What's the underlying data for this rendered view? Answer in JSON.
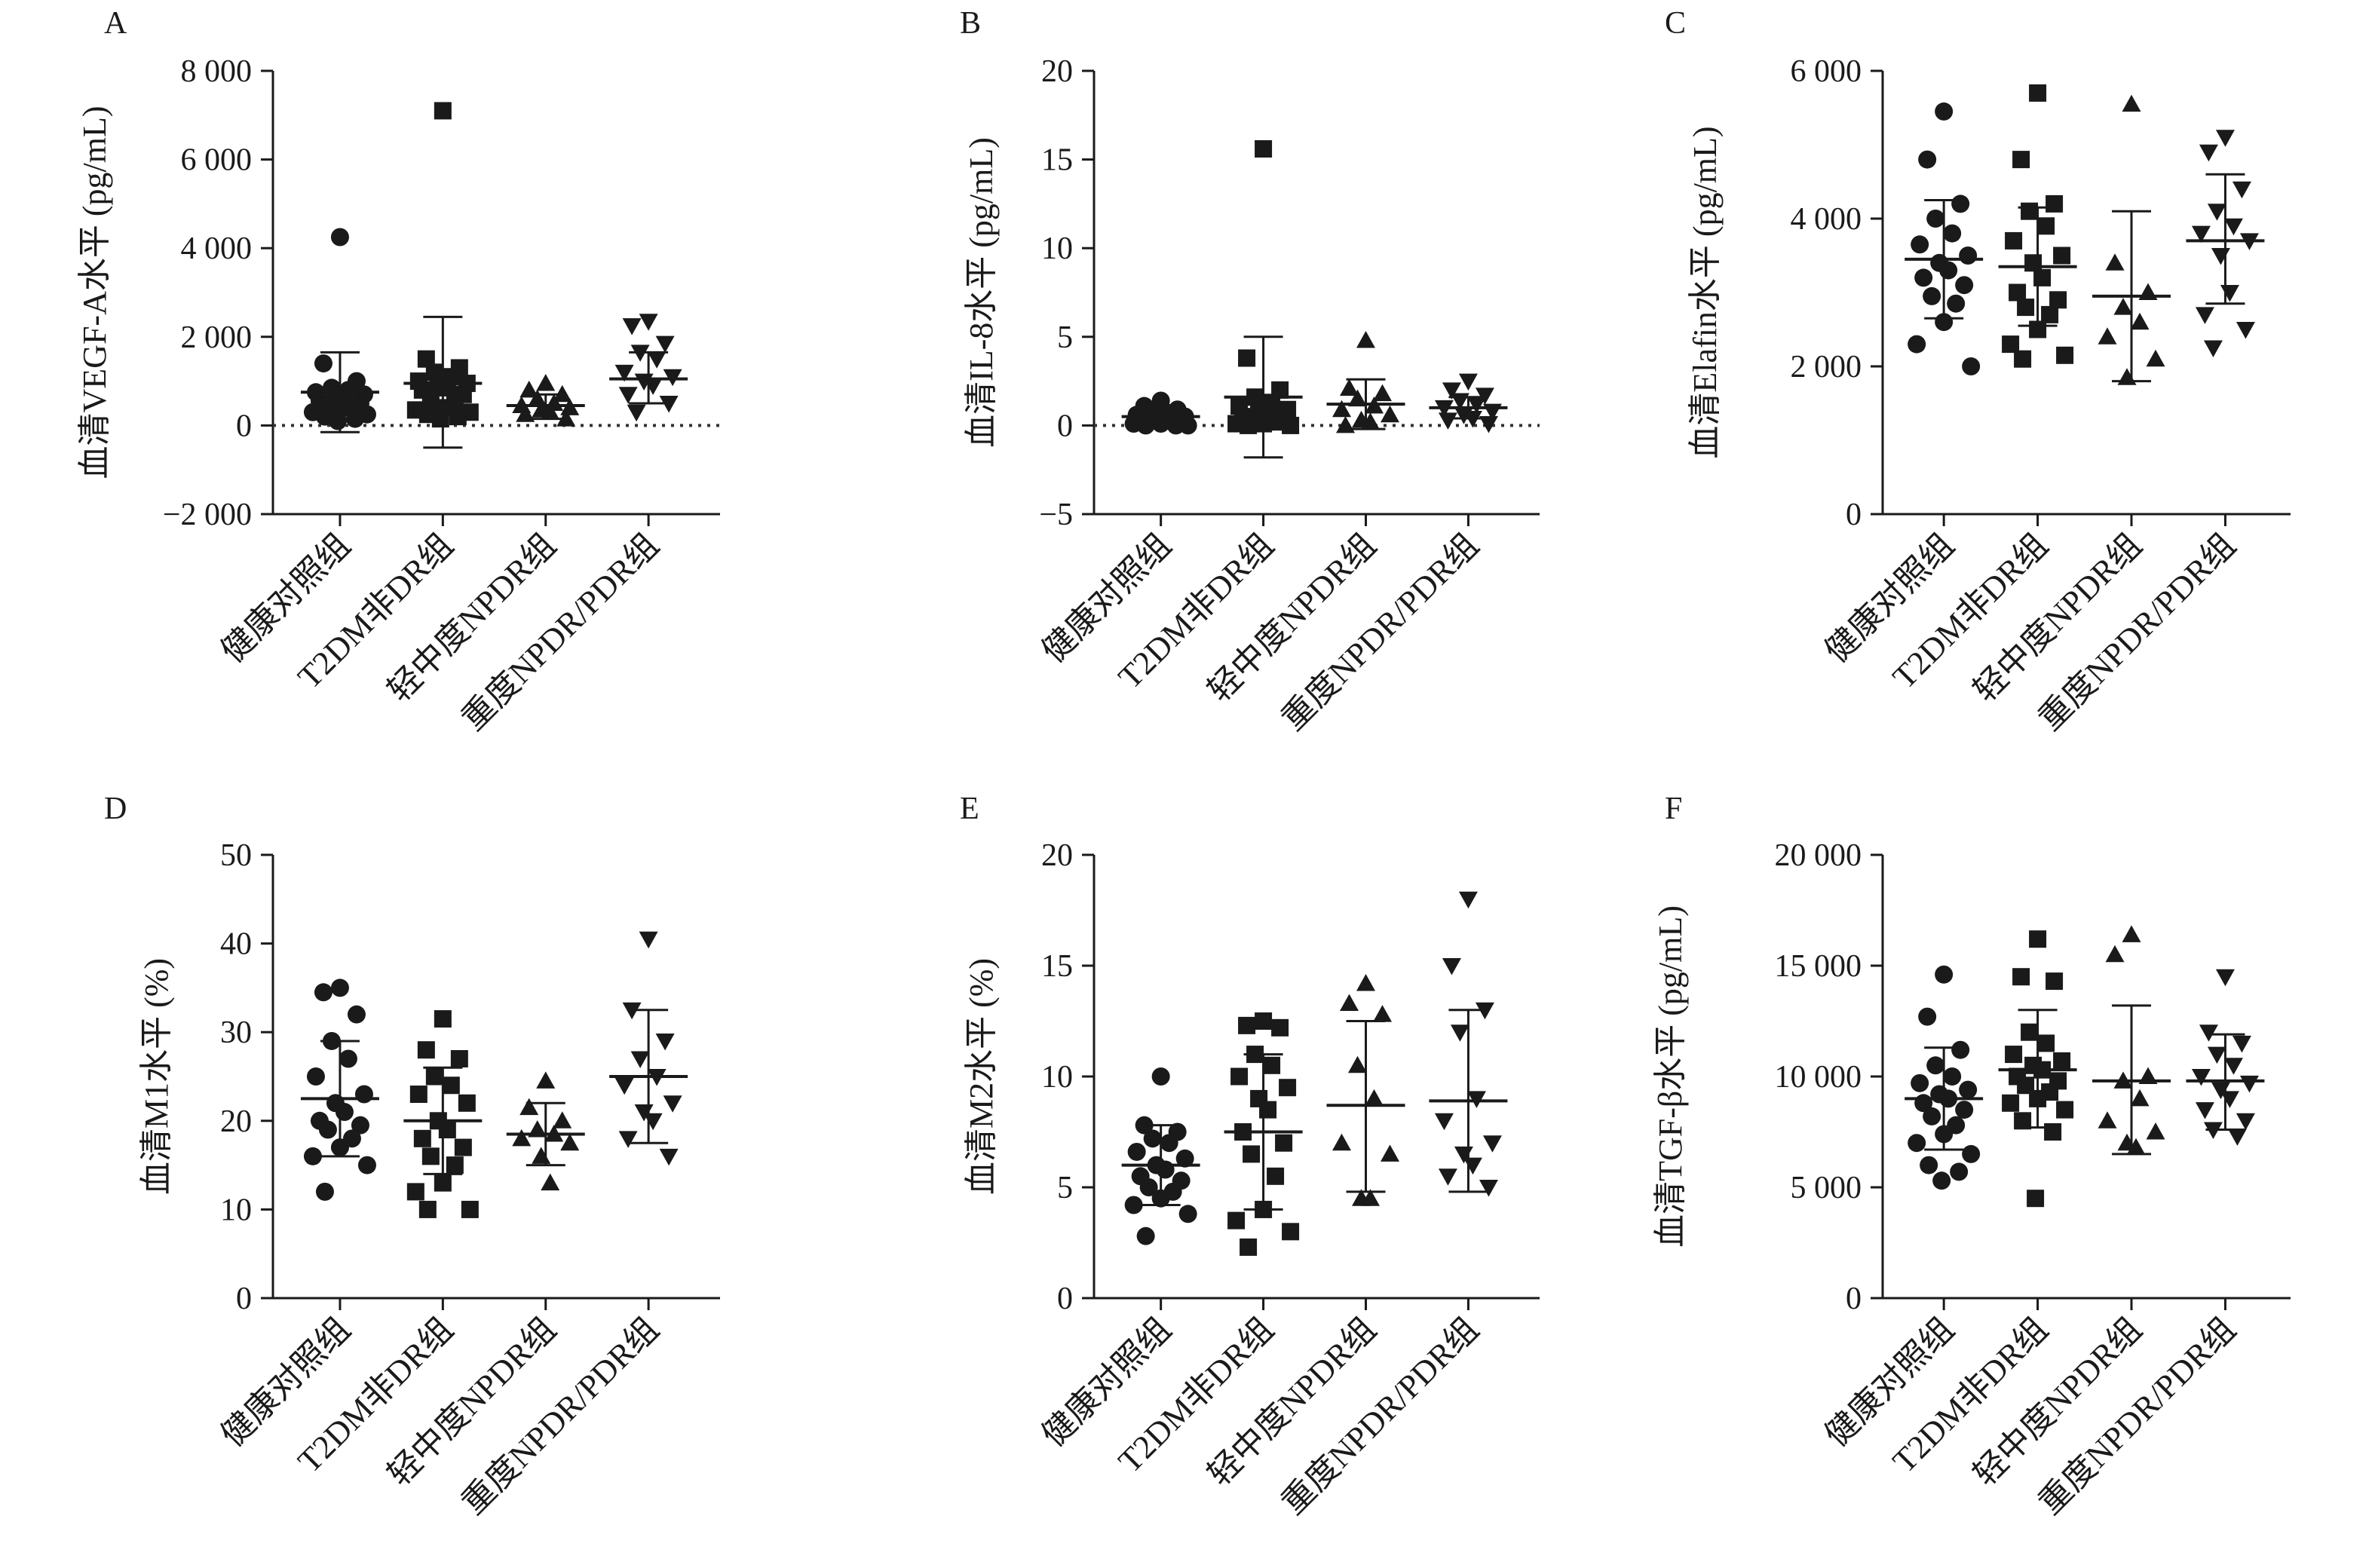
{
  "figure": {
    "panels": [
      "A",
      "B",
      "C",
      "D",
      "E",
      "F"
    ]
  },
  "chart_data": [
    {
      "panel": "A",
      "type": "scatter",
      "ylabel": "血清VEGF-A水平 (pg/mL)",
      "categories": [
        "健康对照组",
        "T2DM非DR组",
        "轻中度NPDR组",
        "重度NPDR/PDR组"
      ],
      "ylim": [
        -2000,
        8000
      ],
      "yticks": [
        -2000,
        0,
        2000,
        4000,
        6000,
        8000
      ],
      "ytick_labels": [
        "−2 000",
        "0",
        "2 000",
        "4 000",
        "6 000",
        "8 000"
      ],
      "zero_line": true,
      "markers": [
        "circle",
        "square",
        "triangle-up",
        "triangle-down"
      ],
      "series": [
        {
          "category": "健康对照组",
          "points": [
            4250,
            1400,
            1000,
            850,
            800,
            750,
            700,
            650,
            600,
            550,
            500,
            450,
            400,
            350,
            300,
            250,
            200,
            150,
            100
          ],
          "mean": 750,
          "sd_low": -150,
          "sd_high": 1650
        },
        {
          "category": "T2DM非DR组",
          "points": [
            7100,
            1500,
            1300,
            1200,
            1100,
            1000,
            950,
            900,
            850,
            800,
            700,
            600,
            500,
            400,
            350,
            300,
            250,
            200,
            150
          ],
          "mean": 950,
          "sd_low": -500,
          "sd_high": 2450
        },
        {
          "category": "轻中度NPDR组",
          "points": [
            950,
            800,
            700,
            600,
            500,
            450,
            400,
            350,
            300,
            250,
            150
          ],
          "mean": 450,
          "sd_low": 150,
          "sd_high": 700
        },
        {
          "category": "重度NPDR/PDR组",
          "points": [
            2350,
            2250,
            1850,
            1650,
            1500,
            1200,
            1100,
            1000,
            900,
            700,
            500,
            300
          ],
          "mean": 1050,
          "sd_low": 500,
          "sd_high": 1650
        }
      ]
    },
    {
      "panel": "B",
      "type": "scatter",
      "ylabel": "血清IL-8水平 (pg/mL)",
      "categories": [
        "健康对照组",
        "T2DM非DR组",
        "轻中度NPDR组",
        "重度NPDR/PDR组"
      ],
      "ylim": [
        -5,
        20
      ],
      "yticks": [
        -5,
        0,
        5,
        10,
        15,
        20
      ],
      "ytick_labels": [
        "−5",
        "0",
        "5",
        "10",
        "15",
        "20"
      ],
      "zero_line": true,
      "markers": [
        "circle",
        "square",
        "triangle-up",
        "triangle-down"
      ],
      "series": [
        {
          "category": "健康对照组",
          "points": [
            1.4,
            1.1,
            0.9,
            0.8,
            0.7,
            0.6,
            0.5,
            0.4,
            0.4,
            0.3,
            0.3,
            0.2,
            0.2,
            0.1,
            0.1,
            0.0,
            0.0,
            0.0
          ],
          "mean": 0.5,
          "sd_low": 0.1,
          "sd_high": 0.9
        },
        {
          "category": "T2DM非DR组",
          "points": [
            15.6,
            3.8,
            2.0,
            1.6,
            1.3,
            1.1,
            0.9,
            0.8,
            0.6,
            0.5,
            0.4,
            0.3,
            0.2,
            0.1,
            0.1,
            0.0,
            0.0
          ],
          "mean": 1.6,
          "sd_low": -1.8,
          "sd_high": 5.0
        },
        {
          "category": "轻中度NPDR组",
          "points": [
            4.8,
            2.1,
            1.8,
            1.5,
            1.1,
            0.9,
            0.6,
            0.3,
            0.2,
            0.0
          ],
          "mean": 1.2,
          "sd_low": -0.2,
          "sd_high": 2.6
        },
        {
          "category": "重度NPDR/PDR组",
          "points": [
            2.5,
            2.0,
            1.7,
            1.4,
            1.2,
            1.0,
            0.8,
            0.6,
            0.4,
            0.3,
            0.1
          ],
          "mean": 1.0,
          "sd_low": 0.4,
          "sd_high": 1.6
        }
      ]
    },
    {
      "panel": "C",
      "type": "scatter",
      "ylabel": "血清Elafin水平 (pg/mL)",
      "categories": [
        "健康对照组",
        "T2DM非DR组",
        "轻中度NPDR组",
        "重度NPDR/PDR组"
      ],
      "ylim": [
        0,
        6000
      ],
      "yticks": [
        0,
        2000,
        4000,
        6000
      ],
      "ytick_labels": [
        "0",
        "2 000",
        "4 000",
        "6 000"
      ],
      "zero_line": false,
      "markers": [
        "circle",
        "square",
        "triangle-up",
        "triangle-down"
      ],
      "series": [
        {
          "category": "健康对照组",
          "points": [
            5450,
            4800,
            4200,
            4000,
            3800,
            3650,
            3500,
            3400,
            3300,
            3200,
            3100,
            2950,
            2850,
            2600,
            2300,
            2000
          ],
          "mean": 3450,
          "sd_low": 2650,
          "sd_high": 4250
        },
        {
          "category": "T2DM非DR组",
          "points": [
            5700,
            4800,
            4200,
            4100,
            3900,
            3700,
            3500,
            3400,
            3200,
            3000,
            2900,
            2800,
            2700,
            2500,
            2300,
            2150,
            2100
          ],
          "mean": 3350,
          "sd_low": 2550,
          "sd_high": 4150
        },
        {
          "category": "轻中度NPDR组",
          "points": [
            5550,
            3400,
            3000,
            2800,
            2600,
            2400,
            2100,
            1850
          ],
          "mean": 2950,
          "sd_low": 1800,
          "sd_high": 4100
        },
        {
          "category": "重度NPDR/PDR组",
          "points": [
            5100,
            4900,
            4400,
            4100,
            3900,
            3800,
            3700,
            3500,
            3000,
            2700,
            2500,
            2250
          ],
          "mean": 3700,
          "sd_low": 2850,
          "sd_high": 4600
        }
      ]
    },
    {
      "panel": "D",
      "type": "scatter",
      "ylabel": "血清M1水平 (%)",
      "categories": [
        "健康对照组",
        "T2DM非DR组",
        "轻中度NPDR组",
        "重度NPDR/PDR组"
      ],
      "ylim": [
        0,
        50
      ],
      "yticks": [
        0,
        10,
        20,
        30,
        40,
        50
      ],
      "ytick_labels": [
        "0",
        "10",
        "20",
        "30",
        "40",
        "50"
      ],
      "zero_line": false,
      "markers": [
        "circle",
        "square",
        "triangle-up",
        "triangle-down"
      ],
      "series": [
        {
          "category": "健康对照组",
          "points": [
            35,
            34.5,
            32,
            29,
            27,
            25,
            23,
            22,
            21,
            20,
            19.5,
            19,
            18,
            17,
            16,
            15,
            12
          ],
          "mean": 22.5,
          "sd_low": 16,
          "sd_high": 29
        },
        {
          "category": "T2DM非DR组",
          "points": [
            31.5,
            28,
            27,
            25,
            24,
            23,
            22,
            20,
            19,
            18,
            17,
            16,
            15,
            13,
            12,
            10,
            10
          ],
          "mean": 20,
          "sd_low": 14,
          "sd_high": 26
        },
        {
          "category": "轻中度NPDR组",
          "points": [
            24.5,
            21.5,
            20,
            19,
            18.5,
            18,
            17.5,
            16,
            13
          ],
          "mean": 18.5,
          "sd_low": 15,
          "sd_high": 22
        },
        {
          "category": "重度NPDR/PDR组",
          "points": [
            40.5,
            32.5,
            29,
            27,
            25,
            24,
            22,
            21,
            20,
            18,
            16
          ],
          "mean": 25,
          "sd_low": 17.5,
          "sd_high": 32.5
        }
      ]
    },
    {
      "panel": "E",
      "type": "scatter",
      "ylabel": "血清M2水平 (%)",
      "categories": [
        "健康对照组",
        "T2DM非DR组",
        "轻中度NPDR组",
        "重度NPDR/PDR组"
      ],
      "ylim": [
        0,
        20
      ],
      "yticks": [
        0,
        5,
        10,
        15,
        20
      ],
      "ytick_labels": [
        "0",
        "5",
        "10",
        "15",
        "20"
      ],
      "zero_line": false,
      "markers": [
        "circle",
        "square",
        "triangle-up",
        "triangle-down"
      ],
      "series": [
        {
          "category": "健康对照组",
          "points": [
            10,
            7.8,
            7.5,
            7.2,
            7,
            6.6,
            6.3,
            6,
            5.8,
            5.5,
            5.3,
            5,
            4.8,
            4.5,
            4.2,
            3.8,
            2.8
          ],
          "mean": 6,
          "sd_low": 4.2,
          "sd_high": 7.8
        },
        {
          "category": "T2DM非DR组",
          "points": [
            12.5,
            12.3,
            12.2,
            11,
            10.5,
            10,
            9.5,
            9,
            8.5,
            7.5,
            7,
            6.5,
            5.5,
            4,
            3.5,
            3,
            2.3
          ],
          "mean": 7.5,
          "sd_low": 4,
          "sd_high": 11
        },
        {
          "category": "轻中度NPDR组",
          "points": [
            14.2,
            13.3,
            12.8,
            10.5,
            9,
            7,
            6.5,
            4.5,
            4.5
          ],
          "mean": 8.7,
          "sd_low": 4.8,
          "sd_high": 12.5
        },
        {
          "category": "重度NPDR/PDR组",
          "points": [
            18,
            15,
            13,
            12,
            9,
            8,
            7,
            6.5,
            6,
            5.5,
            5
          ],
          "mean": 8.9,
          "sd_low": 4.8,
          "sd_high": 13
        }
      ]
    },
    {
      "panel": "F",
      "type": "scatter",
      "ylabel": "血清TGF-β水平 (pg/mL)",
      "categories": [
        "健康对照组",
        "T2DM非DR组",
        "轻中度NPDR组",
        "重度NPDR/PDR组"
      ],
      "ylim": [
        0,
        20000
      ],
      "yticks": [
        0,
        5000,
        10000,
        15000,
        20000
      ],
      "ytick_labels": [
        "0",
        "5 000",
        "10 000",
        "15 000",
        "20 000"
      ],
      "zero_line": false,
      "markers": [
        "circle",
        "square",
        "triangle-up",
        "triangle-down"
      ],
      "series": [
        {
          "category": "健康对照组",
          "points": [
            14600,
            12700,
            11200,
            10500,
            10000,
            9700,
            9400,
            9200,
            9000,
            8800,
            8500,
            8200,
            7800,
            7400,
            7000,
            6500,
            6000,
            5700,
            5300
          ],
          "mean": 9000,
          "sd_low": 6700,
          "sd_high": 11300
        },
        {
          "category": "T2DM非DR组",
          "points": [
            16200,
            14500,
            14300,
            12000,
            11500,
            11000,
            10700,
            10500,
            10300,
            10000,
            9800,
            9600,
            9300,
            9000,
            8800,
            8500,
            8000,
            7500,
            4500
          ],
          "mean": 10300,
          "sd_low": 7700,
          "sd_high": 13000
        },
        {
          "category": "轻中度NPDR组",
          "points": [
            16400,
            15500,
            10000,
            9800,
            9000,
            8000,
            7500,
            7000,
            6800
          ],
          "mean": 9800,
          "sd_low": 6500,
          "sd_high": 13200
        },
        {
          "category": "重度NPDR/PDR组",
          "points": [
            14500,
            12000,
            11500,
            11000,
            10500,
            10000,
            9700,
            9400,
            9000,
            8500,
            8000,
            7600,
            7300
          ],
          "mean": 9800,
          "sd_low": 7600,
          "sd_high": 11900
        }
      ]
    }
  ]
}
